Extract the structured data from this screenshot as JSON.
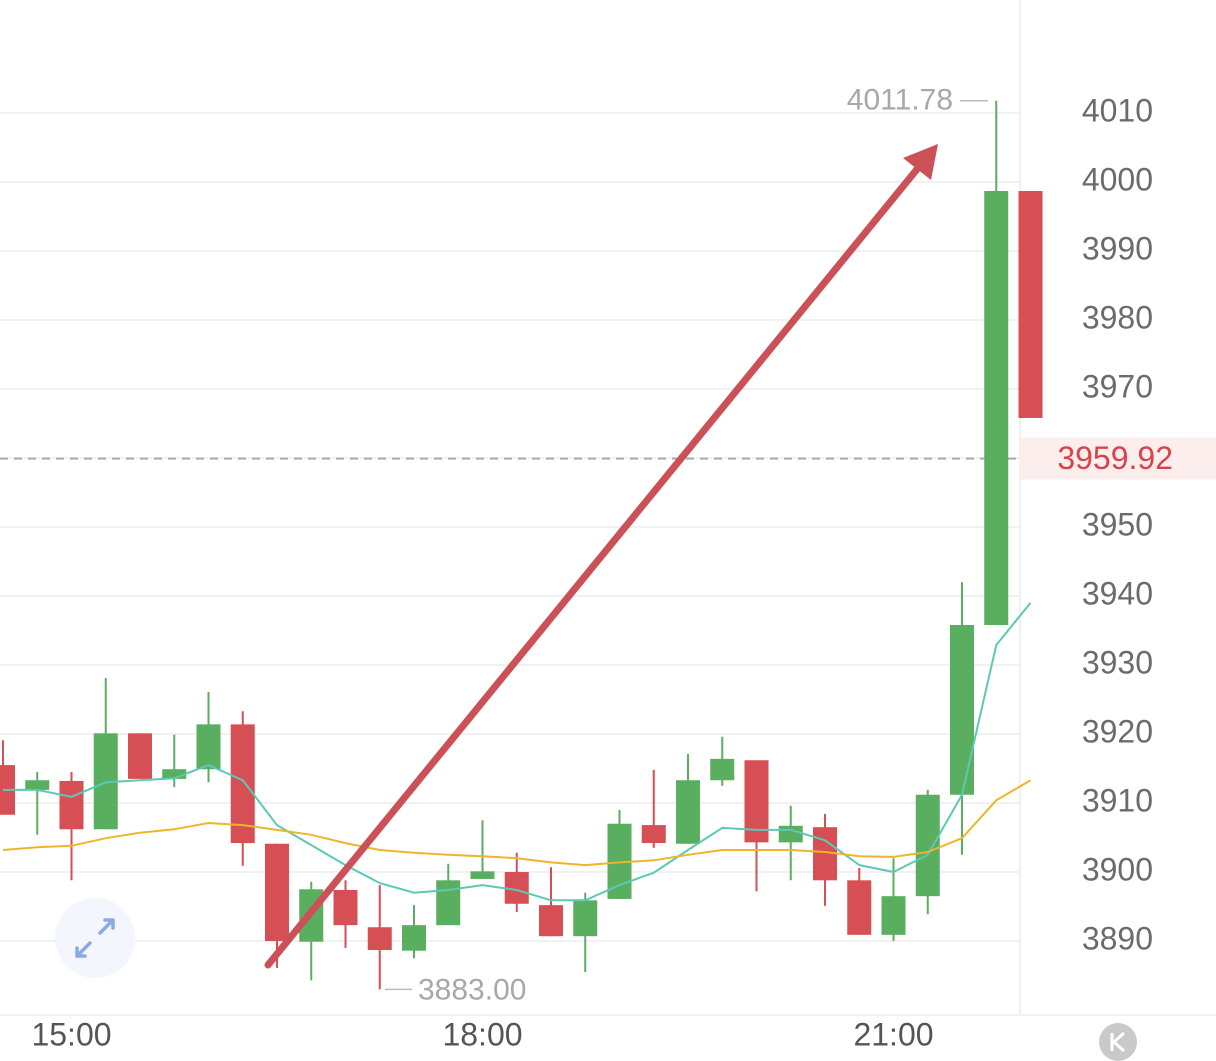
{
  "chart_data": {
    "type": "candlestick",
    "categories": [
      null,
      null,
      "15:00",
      null,
      null,
      null,
      null,
      null,
      null,
      null,
      null,
      null,
      null,
      null,
      "18:00",
      null,
      null,
      null,
      null,
      null,
      null,
      null,
      null,
      null,
      null,
      null,
      "21:00",
      null,
      null,
      null,
      null
    ],
    "open": [
      3915.5,
      3911.9,
      3913.2,
      3906.2,
      3920.1,
      3913.5,
      3914.9,
      3921.4,
      3904.1,
      3889.9,
      3897.4,
      3892.0,
      3888.6,
      3892.3,
      3899.0,
      3900.0,
      3895.2,
      3890.7,
      3896.1,
      3906.8,
      3904.1,
      3913.3,
      3916.2,
      3904.3,
      3906.5,
      3898.8,
      3890.9,
      3896.5,
      3911.2,
      3935.8,
      3998.7
    ],
    "high": [
      3919.1,
      3914.5,
      3914.5,
      3928.1,
      3920.1,
      3919.9,
      3926.1,
      3923.3,
      3904.1,
      3898.6,
      3898.8,
      3898.1,
      3895.2,
      3901.2,
      3907.5,
      3902.8,
      3900.7,
      3897.0,
      3909.0,
      3914.8,
      3917.1,
      3919.6,
      3916.2,
      3909.6,
      3908.4,
      3900.6,
      3902.0,
      3911.9,
      3942.0,
      4011.78,
      3998.7
    ],
    "low": [
      3908.3,
      3905.4,
      3898.8,
      3906.2,
      3913.5,
      3912.3,
      3913.0,
      3900.9,
      3886.1,
      3884.3,
      3889.0,
      3883.0,
      3887.5,
      3892.3,
      3899.0,
      3894.2,
      3890.7,
      3885.5,
      3896.1,
      3903.5,
      3904.1,
      3912.5,
      3897.2,
      3898.8,
      3895.1,
      3890.9,
      3890.0,
      3893.9,
      3902.5,
      3935.8,
      3965.8
    ],
    "close": [
      3908.3,
      3913.3,
      3906.2,
      3920.1,
      3913.5,
      3914.9,
      3921.4,
      3904.2,
      3890.0,
      3897.5,
      3892.3,
      3888.7,
      3892.3,
      3898.8,
      3900.1,
      3895.4,
      3890.7,
      3895.9,
      3907.0,
      3904.2,
      3913.3,
      3916.4,
      3904.3,
      3906.7,
      3898.8,
      3890.9,
      3896.5,
      3911.2,
      3935.8,
      3998.7,
      3965.8
    ],
    "up_color": "#5aae5f",
    "down_color": "#d64f55",
    "lines": [
      {
        "color": "#5cc9b5",
        "values": [
          3911.9,
          3911.9,
          3910.9,
          3913.0,
          3913.3,
          3913.6,
          3915.5,
          3913.3,
          3906.8,
          3903.9,
          3901.0,
          3898.4,
          3897.0,
          3897.4,
          3898.1,
          3897.4,
          3895.9,
          3895.9,
          3898.1,
          3899.9,
          3903.2,
          3906.4,
          3906.1,
          3906.1,
          3904.6,
          3901.0,
          3900.0,
          3902.5,
          3911.2,
          3932.9,
          3939.0
        ]
      },
      {
        "color": "#f0b429",
        "values": [
          3903.2,
          3903.6,
          3903.8,
          3904.9,
          3905.7,
          3906.2,
          3907.1,
          3906.8,
          3906.1,
          3905.4,
          3904.2,
          3903.2,
          3902.8,
          3902.5,
          3902.3,
          3902.0,
          3901.4,
          3901.0,
          3901.4,
          3901.7,
          3902.5,
          3903.2,
          3903.2,
          3903.2,
          3902.9,
          3902.3,
          3902.2,
          3902.9,
          3904.9,
          3910.4,
          3913.3
        ]
      }
    ],
    "ylim": [
      3879.28,
      4026.38
    ],
    "yticks": [
      3890,
      3900,
      3910,
      3920,
      3930,
      3940,
      3950,
      3960,
      3970,
      3980,
      3990,
      4000,
      4010
    ],
    "grid": true,
    "high_marker": 4011.78,
    "low_marker": {
      "value": 3883,
      "label": "3883.00"
    },
    "last_price": 3959.92
  }
}
